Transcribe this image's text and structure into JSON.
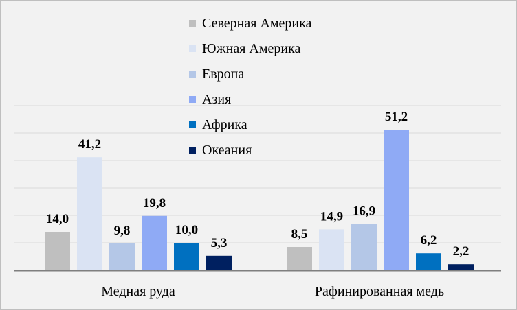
{
  "chart_data": {
    "type": "bar",
    "title": "",
    "xlabel": "",
    "ylabel": "",
    "ylim": [
      0,
      60
    ],
    "grid": true,
    "legend_position": "top-center",
    "categories": [
      "Медная руда",
      "Рафинированная медь"
    ],
    "series": [
      {
        "name": "Северная Америка",
        "color": "#bfbfbf",
        "values": [
          14.0,
          8.5
        ],
        "labels": [
          "14,0",
          "8,5"
        ]
      },
      {
        "name": "Южная Америка",
        "color": "#dae3f3",
        "values": [
          41.2,
          14.9
        ],
        "labels": [
          "41,2",
          "14,9"
        ]
      },
      {
        "name": "Европа",
        "color": "#b4c7e7",
        "values": [
          9.8,
          16.9
        ],
        "labels": [
          "9,8",
          "16,9"
        ]
      },
      {
        "name": "Азия",
        "color": "#8faaf5",
        "values": [
          19.8,
          51.2
        ],
        "labels": [
          "19,8",
          "51,2"
        ]
      },
      {
        "name": "Африка",
        "color": "#0070c0",
        "values": [
          10.0,
          6.2
        ],
        "labels": [
          "10,0",
          "6,2"
        ]
      },
      {
        "name": "Океания",
        "color": "#002060",
        "values": [
          5.3,
          2.2
        ],
        "labels": [
          "5,3",
          "2,2"
        ]
      }
    ]
  }
}
